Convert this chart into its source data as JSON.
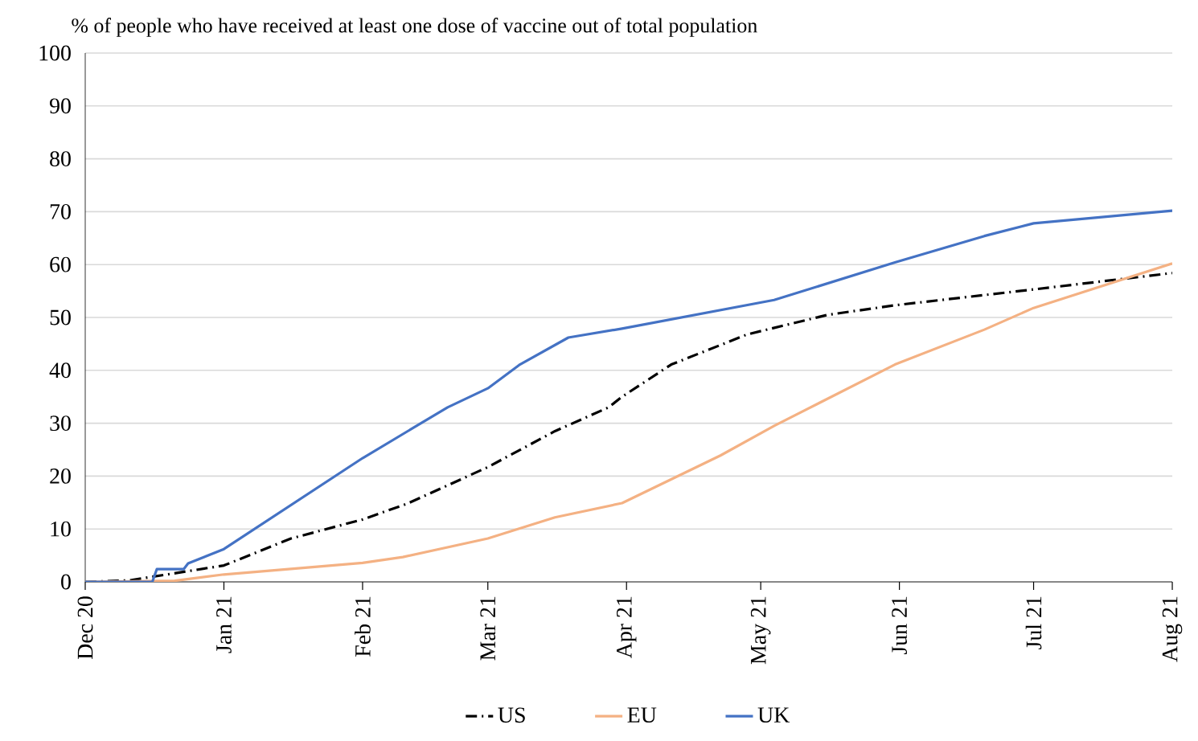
{
  "chart_data": {
    "type": "line",
    "title": "% of people who have received at least one dose of vaccine out of total population",
    "xlim": [
      "2020-12-01",
      "2021-08-01"
    ],
    "xticks": [
      {
        "value": "2020-12-01",
        "label": "Dec 20"
      },
      {
        "value": "2021-01-01",
        "label": "Jan 21"
      },
      {
        "value": "2021-02-01",
        "label": "Feb 21"
      },
      {
        "value": "2021-03-01",
        "label": "Mar 21"
      },
      {
        "value": "2021-04-01",
        "label": "Apr 21"
      },
      {
        "value": "2021-05-01",
        "label": "May 21"
      },
      {
        "value": "2021-06-01",
        "label": "Jun 21"
      },
      {
        "value": "2021-07-01",
        "label": "Jul 21"
      },
      {
        "value": "2021-08-01",
        "label": "Aug 21"
      }
    ],
    "ylim": [
      0,
      100
    ],
    "yticks": [
      0,
      10,
      20,
      30,
      40,
      50,
      60,
      70,
      80,
      90,
      100
    ],
    "grid": "y",
    "legend": "bottom",
    "marker": "none",
    "series": [
      {
        "name": "US",
        "color": "#000000",
        "line_style": "dashdot",
        "x": [
          "2020-12-01",
          "2020-12-11",
          "2021-01-01",
          "2021-01-16",
          "2021-02-01",
          "2021-02-11",
          "2021-03-01",
          "2021-03-16",
          "2021-03-28",
          "2021-03-31",
          "2021-04-11",
          "2021-04-28",
          "2021-05-16",
          "2021-05-31",
          "2021-07-01",
          "2021-08-01"
        ],
        "values": [
          0,
          0.3,
          3.1,
          8.2,
          11.8,
          14.8,
          21.7,
          28.5,
          33,
          35,
          41.1,
          46.8,
          50.5,
          52.3,
          55.3,
          58.4
        ]
      },
      {
        "name": "EU",
        "color": "#f4b183",
        "line_style": "solid",
        "x": [
          "2020-12-01",
          "2020-12-21",
          "2021-01-01",
          "2021-02-01",
          "2021-02-10",
          "2021-03-01",
          "2021-03-16",
          "2021-03-31",
          "2021-04-22",
          "2021-05-04",
          "2021-05-31",
          "2021-06-20",
          "2021-07-01",
          "2021-08-01"
        ],
        "values": [
          0,
          0.2,
          1.4,
          3.6,
          4.7,
          8.2,
          12.2,
          14.9,
          23.9,
          29.5,
          41.1,
          47.7,
          51.8,
          60.2
        ]
      },
      {
        "name": "UK",
        "color": "#4472c4",
        "line_style": "solid",
        "x": [
          "2020-12-01",
          "2020-12-16",
          "2020-12-17",
          "2020-12-23",
          "2020-12-24",
          "2021-01-01",
          "2021-02-01",
          "2021-02-20",
          "2021-03-01",
          "2021-03-08",
          "2021-03-19",
          "2021-03-31",
          "2021-05-04",
          "2021-05-31",
          "2021-06-20",
          "2021-07-01",
          "2021-08-01"
        ],
        "values": [
          0,
          0,
          2.4,
          2.4,
          3.5,
          6.2,
          23.4,
          33,
          36.6,
          41,
          46.2,
          47.9,
          53.3,
          60.4,
          65.4,
          67.8,
          70.2
        ]
      }
    ]
  }
}
